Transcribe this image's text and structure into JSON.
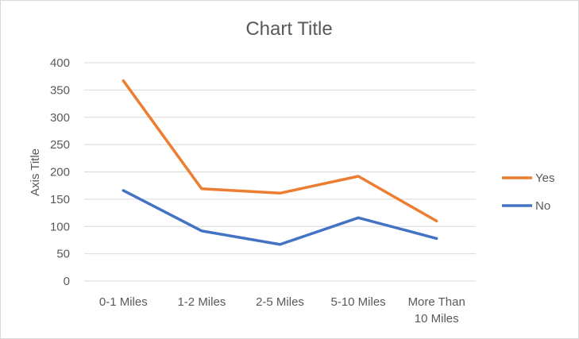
{
  "chart_data": {
    "type": "line",
    "title": "Chart Title",
    "xlabel": "",
    "ylabel": "Axis Title",
    "ylim": [
      0,
      400
    ],
    "yticks": [
      0,
      50,
      100,
      150,
      200,
      250,
      300,
      350,
      400
    ],
    "categories": [
      "0-1 Miles",
      "1-2 Miles",
      "2-5 Miles",
      "5-10 Miles",
      "More Than 10 Miles"
    ],
    "category_lines": [
      [
        "0-1 Miles"
      ],
      [
        "1-2 Miles"
      ],
      [
        "2-5 Miles"
      ],
      [
        "5-10 Miles"
      ],
      [
        "More Than",
        "10 Miles"
      ]
    ],
    "series": [
      {
        "name": "Yes",
        "values": [
          367,
          169,
          161,
          192,
          110
        ],
        "color": "#ed7d31"
      },
      {
        "name": "No",
        "values": [
          166,
          92,
          67,
          116,
          78
        ],
        "color": "#4472c4"
      }
    ],
    "grid": true,
    "legend": "right"
  }
}
